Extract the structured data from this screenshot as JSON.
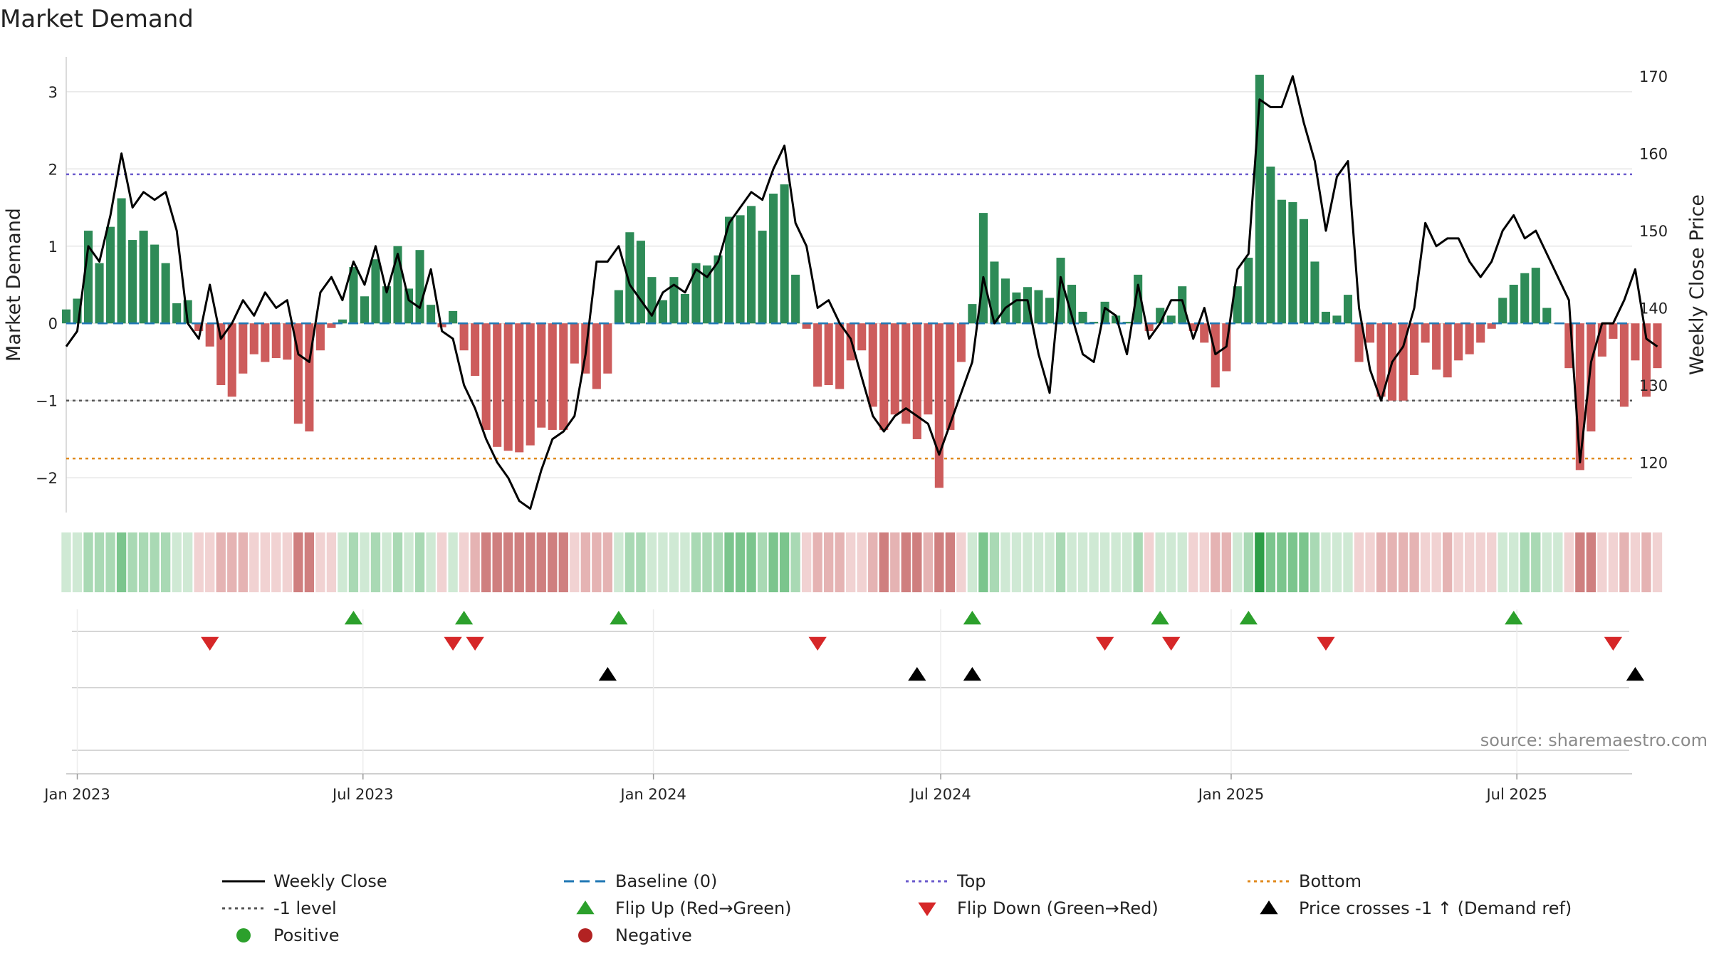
{
  "chart_data": {
    "type": "bar",
    "title": "Market Demand",
    "ylabel": "Market Demand",
    "y2label": "Weekly Close Price",
    "ylim": [
      -2.45,
      3.45
    ],
    "y2lim": [
      113.5,
      172.5
    ],
    "yticks": [
      -2,
      -1,
      0,
      1,
      2,
      3
    ],
    "y2ticks": [
      120,
      130,
      140,
      150,
      160,
      170
    ],
    "x_start": "2022-12-25",
    "x_end": "2025-09-12",
    "week_start": "2022-12-25",
    "x_ticks": [
      {
        "date": "2023-01-01",
        "label": "Jan 2023"
      },
      {
        "date": "2023-07-01",
        "label": "Jul 2023"
      },
      {
        "date": "2024-01-01",
        "label": "Jan 2024"
      },
      {
        "date": "2024-07-01",
        "label": "Jul 2024"
      },
      {
        "date": "2025-01-01",
        "label": "Jan 2025"
      },
      {
        "date": "2025-07-01",
        "label": "Jul 2025"
      }
    ],
    "reference_lines": {
      "top": 1.93,
      "minus_one": -1.0,
      "bottom": -1.75,
      "baseline": 0
    },
    "demand": [
      0.18,
      0.32,
      1.2,
      0.78,
      1.25,
      1.62,
      1.08,
      1.2,
      1.02,
      0.78,
      0.26,
      0.3,
      -0.1,
      -0.3,
      -0.8,
      -0.95,
      -0.65,
      -0.4,
      -0.5,
      -0.45,
      -0.47,
      -1.3,
      -1.4,
      -0.35,
      -0.06,
      0.05,
      0.73,
      0.35,
      0.83,
      0.48,
      1.0,
      0.45,
      0.95,
      0.24,
      -0.05,
      0.16,
      -0.35,
      -0.68,
      -1.38,
      -1.6,
      -1.65,
      -1.67,
      -1.58,
      -1.35,
      -1.38,
      -1.38,
      -0.52,
      -0.65,
      -0.85,
      -0.65,
      0.43,
      1.18,
      1.07,
      0.6,
      0.3,
      0.6,
      0.38,
      0.78,
      0.75,
      0.88,
      1.38,
      1.4,
      1.52,
      1.2,
      1.68,
      1.8,
      0.63,
      -0.07,
      -0.82,
      -0.8,
      -0.85,
      -0.48,
      -0.35,
      -1.08,
      -1.38,
      -1.18,
      -1.3,
      -1.5,
      -1.18,
      -2.13,
      -1.38,
      -0.5,
      0.25,
      1.43,
      0.8,
      0.58,
      0.4,
      0.47,
      0.43,
      0.33,
      0.85,
      0.5,
      0.15,
      0.02,
      0.28,
      0.1,
      0.02,
      0.63,
      -0.1,
      0.2,
      0.1,
      0.48,
      -0.1,
      -0.25,
      -0.83,
      -0.62,
      0.48,
      0.85,
      3.22,
      2.03,
      1.6,
      1.57,
      1.35,
      0.8,
      0.15,
      0.1,
      0.37,
      -0.5,
      -0.25,
      -0.95,
      -1.0,
      -1.0,
      -0.67,
      -0.25,
      -0.6,
      -0.7,
      -0.48,
      -0.4,
      -0.25,
      -0.07,
      0.33,
      0.5,
      0.65,
      0.72,
      0.2,
      0.0,
      -0.58,
      -1.9,
      -1.4,
      -0.43,
      -0.2,
      -1.08,
      -0.48,
      -0.95,
      -0.58
    ],
    "weekly_close": [
      135,
      137,
      148,
      146,
      152,
      160,
      153,
      155,
      154,
      155,
      150,
      138,
      136,
      143,
      136,
      138,
      141,
      139,
      142,
      140,
      141,
      134,
      133,
      142,
      144,
      141,
      146,
      143,
      148,
      142,
      147,
      141,
      140,
      145,
      137,
      136,
      130,
      127,
      123,
      120,
      118,
      115,
      114,
      119,
      123,
      124,
      126,
      134,
      146,
      146,
      148,
      143,
      141,
      139,
      142,
      143,
      142,
      145,
      144,
      146,
      151,
      153,
      155,
      154,
      158,
      161,
      151,
      148,
      140,
      141,
      138,
      136,
      131,
      126,
      124,
      126,
      127,
      126,
      125,
      121,
      125,
      129,
      133,
      144,
      138,
      140,
      141,
      141,
      134,
      129,
      144,
      139,
      134,
      133,
      140,
      139,
      134,
      143,
      136,
      138,
      141,
      141,
      136,
      140,
      134,
      135,
      145,
      147,
      167,
      166,
      166,
      170,
      164,
      159,
      150,
      157,
      159,
      140,
      132,
      128,
      133,
      135,
      140,
      151,
      148,
      149,
      149,
      146,
      144,
      146,
      150,
      152,
      149,
      150,
      147,
      144,
      141,
      120,
      133,
      138,
      138,
      141,
      145,
      136,
      135
    ]
  },
  "heat_strip": {
    "positive_light": "#cfe9d4",
    "positive_mid": "#a9d9b4",
    "positive_strong": "#7bc58d",
    "positive_max": "#2e9e48",
    "negative_light": "#f1d2d2",
    "negative_mid": "#e5b3b3",
    "negative_strong": "#cf7f7f"
  },
  "events": {
    "flip_up_weeks": [
      26,
      36,
      50,
      82,
      99,
      107,
      131
    ],
    "flip_down_weeks": [
      13,
      35,
      37,
      68,
      94,
      100,
      114,
      140
    ],
    "price_cross_weeks": [
      49,
      77,
      82,
      142
    ]
  },
  "colors": {
    "positive_bar": "#2e8b57",
    "negative_bar": "#cd5c5c",
    "weekly_close": "#000000",
    "baseline": "#1f77b4",
    "top": "#6a5acd",
    "minus_one": "#555555",
    "bottom": "#e08a1e",
    "flip_up": "#2ca02c",
    "flip_down": "#d62728",
    "price_cross": "#000000",
    "positive_dot": "#2ca02c",
    "negative_dot": "#b22222",
    "grid": "#e6e6e6"
  },
  "legend": [
    {
      "key": "weekly_close",
      "label": "Weekly Close",
      "symbol": "solid-line"
    },
    {
      "key": "baseline",
      "label": "Baseline (0)",
      "symbol": "dash-line"
    },
    {
      "key": "top",
      "label": "Top",
      "symbol": "dot-line"
    },
    {
      "key": "bottom",
      "label": "Bottom",
      "symbol": "dot-line"
    },
    {
      "key": "minus_one",
      "label": "-1 level",
      "symbol": "dot-line"
    },
    {
      "key": "flip_up",
      "label": "Flip Up (Red→Green)",
      "symbol": "triangle-up"
    },
    {
      "key": "flip_down",
      "label": "Flip Down (Green→Red)",
      "symbol": "triangle-down"
    },
    {
      "key": "price_cross",
      "label": "Price crosses -1 ↑ (Demand ref)",
      "symbol": "triangle-up"
    },
    {
      "key": "positive_dot",
      "label": "Positive",
      "symbol": "dot"
    },
    {
      "key": "negative_dot",
      "label": "Negative",
      "symbol": "dot"
    }
  ],
  "source": "source: sharemaestro.com"
}
